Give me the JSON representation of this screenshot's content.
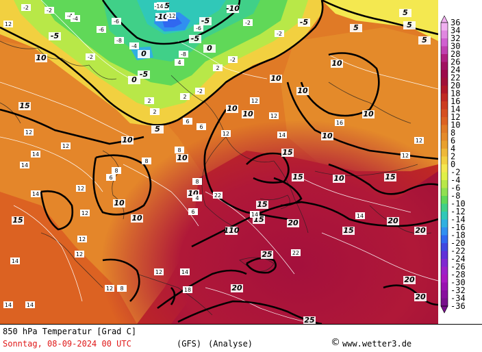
{
  "map": {
    "contour_labels_thick": [
      {
        "v": "-15"
      },
      {
        "v": "-10"
      },
      {
        "v": "-10"
      },
      {
        "v": "-5"
      },
      {
        "v": "-5"
      },
      {
        "v": "-5"
      },
      {
        "v": "-5"
      },
      {
        "v": "-5"
      },
      {
        "v": "0"
      },
      {
        "v": "0"
      },
      {
        "v": "0"
      },
      {
        "v": "5"
      },
      {
        "v": "5"
      },
      {
        "v": "5"
      },
      {
        "v": "5"
      },
      {
        "v": "5"
      },
      {
        "v": "10"
      },
      {
        "v": "10"
      },
      {
        "v": "10"
      },
      {
        "v": "10"
      },
      {
        "v": "10"
      },
      {
        "v": "10"
      },
      {
        "v": "10"
      },
      {
        "v": "10"
      },
      {
        "v": "10"
      },
      {
        "v": "10"
      },
      {
        "v": "10"
      },
      {
        "v": "10"
      },
      {
        "v": "10"
      },
      {
        "v": "10"
      },
      {
        "v": "15"
      },
      {
        "v": "15"
      },
      {
        "v": "15"
      },
      {
        "v": "15"
      },
      {
        "v": "15"
      },
      {
        "v": "15"
      },
      {
        "v": "15"
      },
      {
        "v": "15"
      },
      {
        "v": "20"
      },
      {
        "v": "20"
      },
      {
        "v": "20"
      },
      {
        "v": "20"
      },
      {
        "v": "20"
      },
      {
        "v": "20"
      },
      {
        "v": "25"
      },
      {
        "v": "25"
      },
      {
        "v": "110"
      }
    ],
    "contour_labels_thin": [
      "-2",
      "-2",
      "-4",
      "-6",
      "-8",
      "-2",
      "-6",
      "-4",
      "-6",
      "-12",
      "-14",
      "-2",
      "-8",
      "-2",
      "-2",
      "-4",
      "-2",
      "2",
      "2",
      "2",
      "2",
      "4",
      "6",
      "6",
      "8",
      "8",
      "8",
      "6",
      "12",
      "12",
      "12",
      "12",
      "12",
      "12",
      "12",
      "12",
      "12",
      "12",
      "12",
      "12",
      "12",
      "12",
      "14",
      "14",
      "14",
      "14",
      "14",
      "14",
      "14",
      "14",
      "14",
      "14",
      "16",
      "18",
      "22",
      "22",
      "8",
      "8",
      "6",
      "4"
    ]
  },
  "legend": {
    "labels": [
      "36",
      "34",
      "32",
      "30",
      "28",
      "26",
      "24",
      "22",
      "20",
      "18",
      "16",
      "14",
      "12",
      "10",
      "8",
      "6",
      "4",
      "2",
      "0",
      "-2",
      "-4",
      "-6",
      "-8",
      "-10",
      "-12",
      "-14",
      "-16",
      "-18",
      "-20",
      "-22",
      "-24",
      "-26",
      "-28",
      "-30",
      "-32",
      "-34",
      "-36"
    ],
    "colors": [
      "#f0b0f0",
      "#e088e0",
      "#d060d0",
      "#c040b0",
      "#b02080",
      "#a01060",
      "#9c0a4a",
      "#a01038",
      "#b01828",
      "#c02a22",
      "#cc3c20",
      "#d65022",
      "#dc6222",
      "#e07a26",
      "#e48a2a",
      "#e8a02e",
      "#eeb838",
      "#f2d040",
      "#f4e850",
      "#e0f048",
      "#b8e848",
      "#90e050",
      "#60d858",
      "#40d088",
      "#30c8b8",
      "#30b0e0",
      "#3090f0",
      "#3068f0",
      "#4048e0",
      "#6030d8",
      "#8028d0",
      "#9c20c8",
      "#a818c0",
      "#9810b0",
      "#88109e",
      "#78108c"
    ]
  },
  "footer": {
    "title": "850 hPa Temperatur [Grad C]",
    "datetime": "Sonntag, 08-09-2024   00 UTC",
    "model": "(GFS)",
    "type": "(Analyse)",
    "copyright": "www.wetter3.de",
    "copyright_symbol": "©",
    "colors": {
      "title": "#000000",
      "datetime": "#e01818",
      "model": "#000000"
    }
  }
}
